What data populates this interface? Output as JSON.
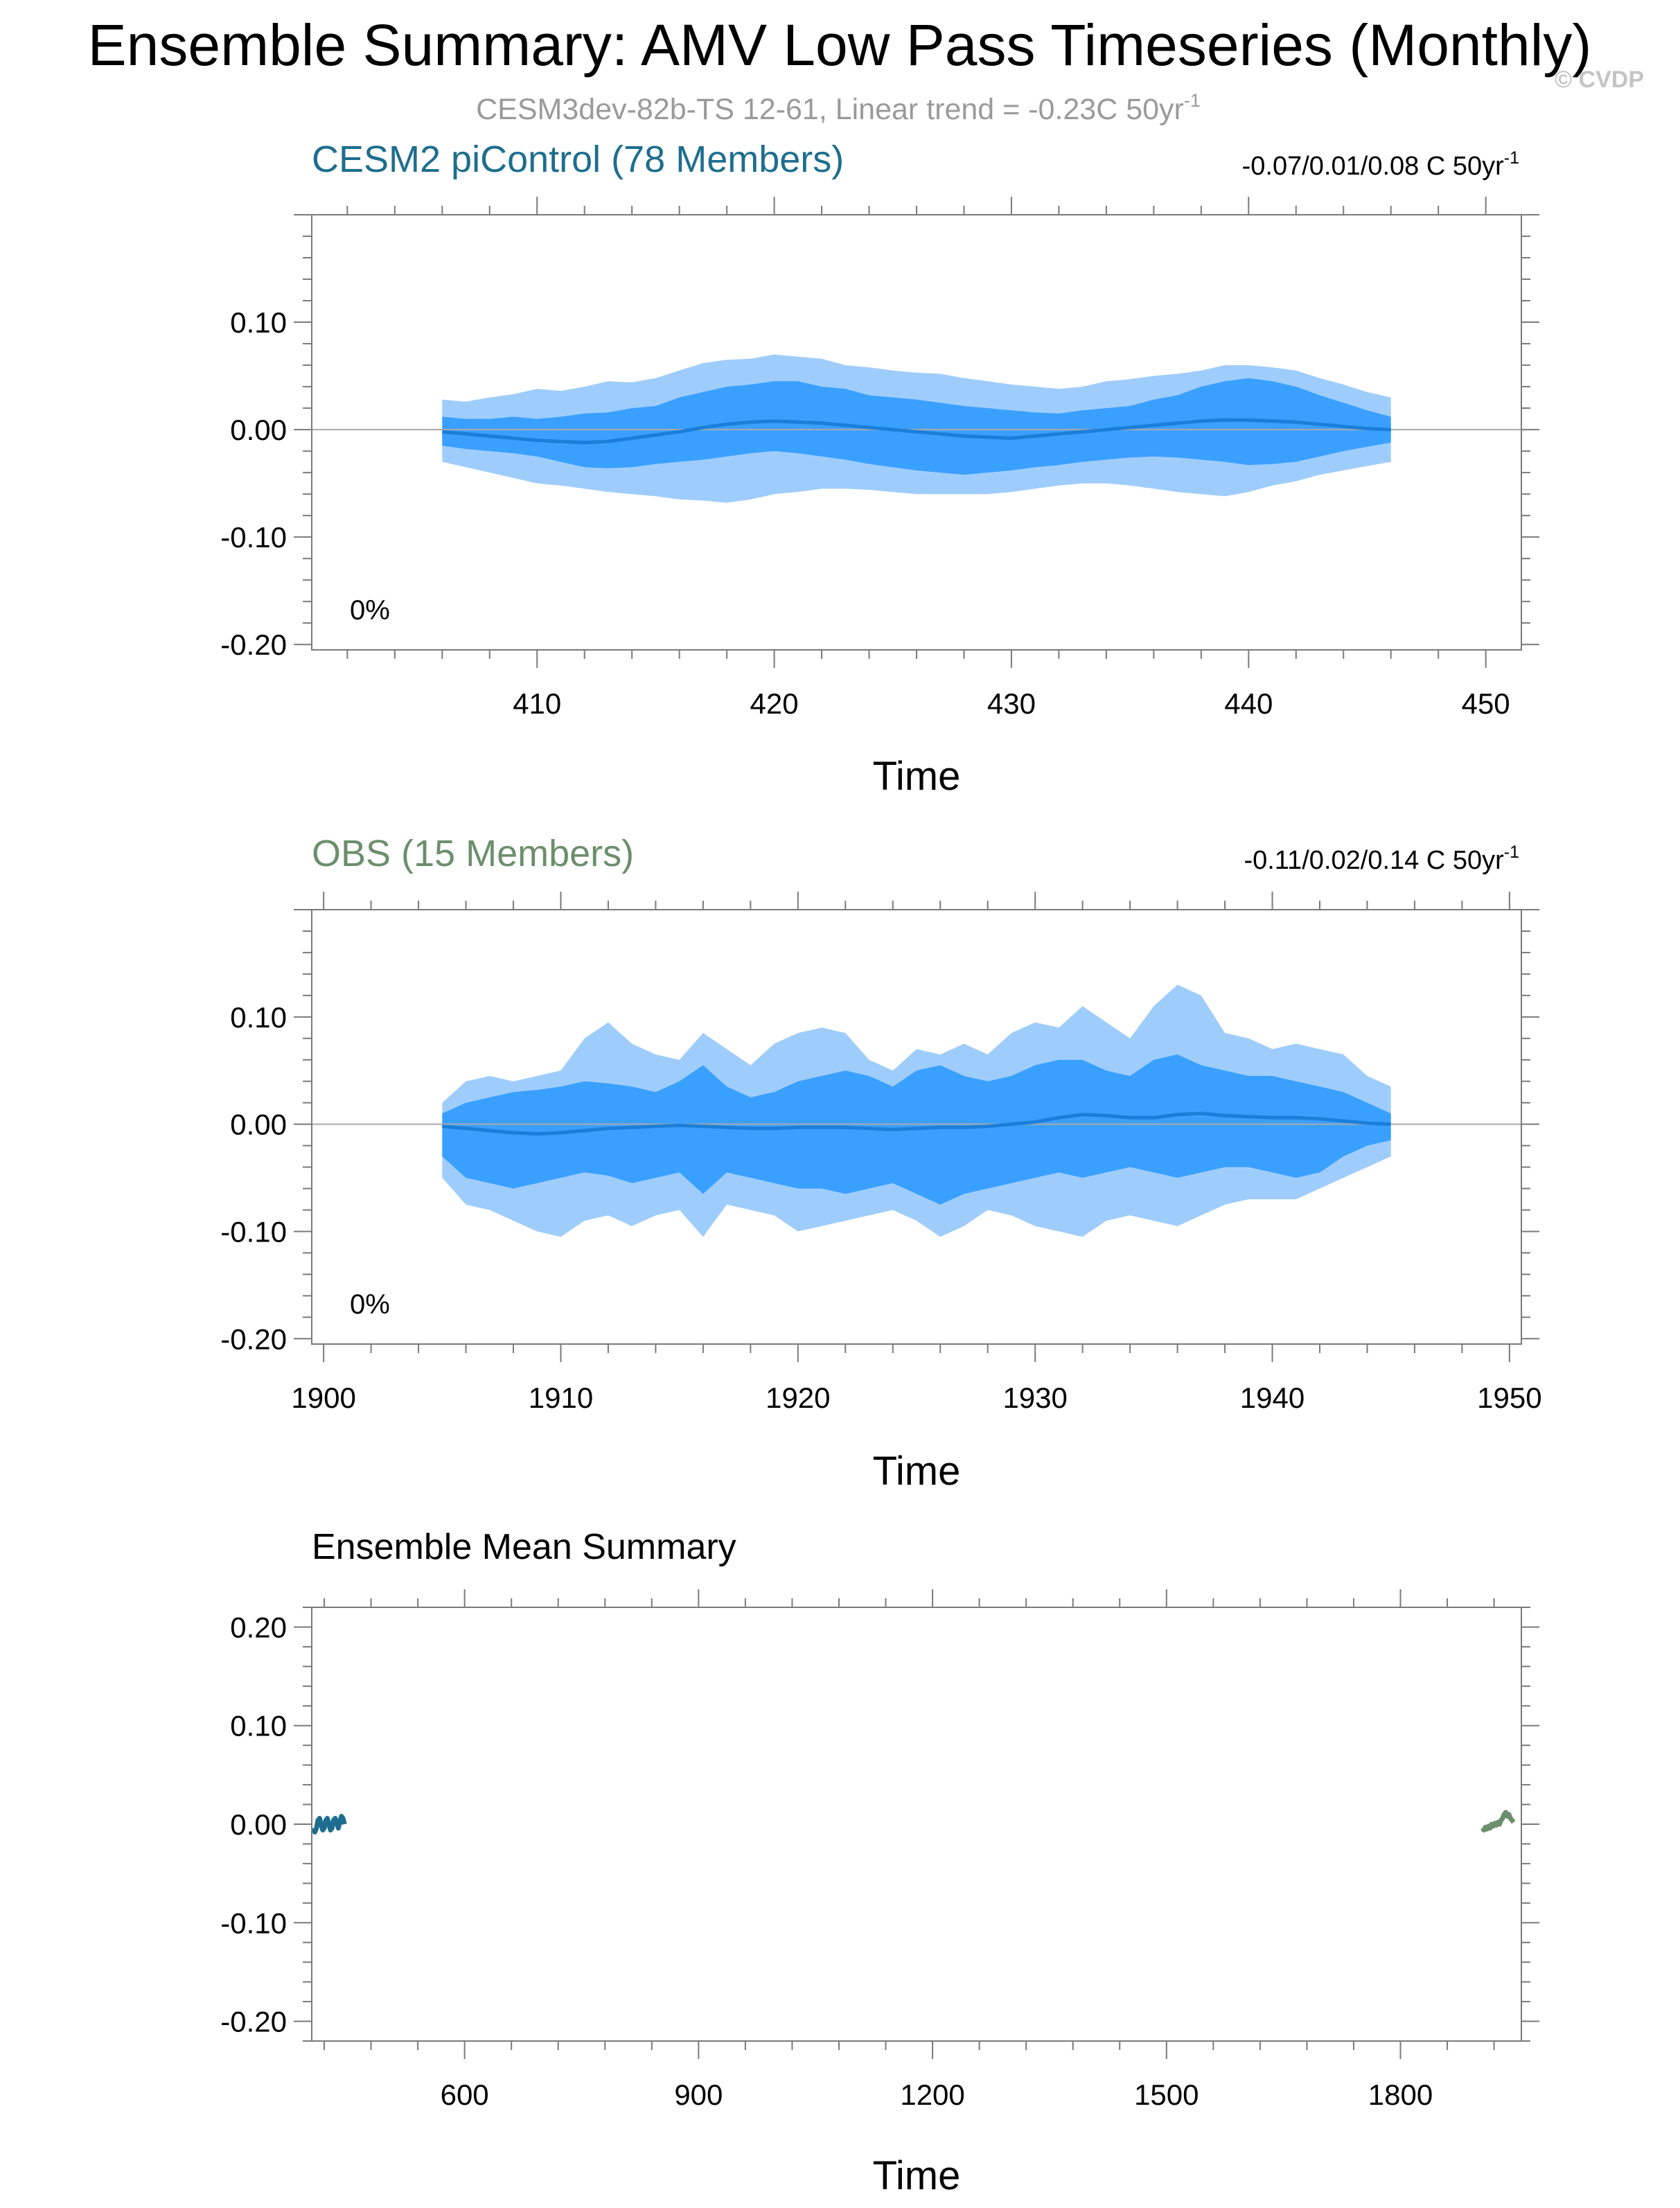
{
  "page": {
    "title": "Ensemble Summary: AMV Low Pass Timeseries (Monthly)",
    "subtitle_main": "CESM3dev-82b-TS 12-61, Linear trend = -0.23C 50yr",
    "subtitle_sup": "-1",
    "watermark": "© CVDP"
  },
  "colors": {
    "band_outer": "#9fcdfb",
    "band_inner": "#3aa0ff",
    "mean_line": "#1a7fd9",
    "axis": "#7a7a7a",
    "zero_line": "#a9a9a9",
    "model_title": "#1d6e8e",
    "obs_title": "#6b8f6b",
    "model_series": "#1d6e8e",
    "obs_series": "#6b8f6b",
    "subtitle": "#9a9a9a",
    "watermark": "#c4c4c4"
  },
  "chart_data": [
    {
      "type": "area",
      "title": "CESM2 piControl (78 Members)",
      "trend_label": "-0.07/0.01/0.08 C 50yr",
      "trend_sup": "-1",
      "xlabel": "Time",
      "ylabel": "",
      "xlim": [
        400.5,
        451.5
      ],
      "ylim": [
        -0.205,
        0.2
      ],
      "x_ticks": [
        410,
        420,
        430,
        440,
        450
      ],
      "x_tick_labels": [
        "410",
        "420",
        "430",
        "440",
        "450"
      ],
      "y_ticks": [
        0.1,
        0.0,
        -0.1,
        -0.2
      ],
      "y_tick_labels": [
        "0.10",
        "0.00",
        "-0.10",
        "-0.20"
      ],
      "annotation": "0%",
      "grid": false,
      "x": [
        406,
        407,
        408,
        409,
        410,
        411,
        412,
        413,
        414,
        415,
        416,
        417,
        418,
        419,
        420,
        421,
        422,
        423,
        424,
        425,
        426,
        427,
        428,
        429,
        430,
        431,
        432,
        433,
        434,
        435,
        436,
        437,
        438,
        439,
        440,
        441,
        442,
        443,
        444,
        445,
        446
      ],
      "series": [
        {
          "name": "outer upper",
          "values": [
            0.028,
            0.026,
            0.03,
            0.033,
            0.038,
            0.036,
            0.04,
            0.045,
            0.044,
            0.048,
            0.055,
            0.062,
            0.065,
            0.066,
            0.07,
            0.068,
            0.066,
            0.06,
            0.058,
            0.055,
            0.053,
            0.052,
            0.048,
            0.045,
            0.042,
            0.04,
            0.038,
            0.04,
            0.045,
            0.047,
            0.05,
            0.052,
            0.055,
            0.06,
            0.06,
            0.058,
            0.055,
            0.048,
            0.042,
            0.035,
            0.03
          ]
        },
        {
          "name": "inner upper",
          "values": [
            0.012,
            0.01,
            0.01,
            0.012,
            0.01,
            0.012,
            0.015,
            0.016,
            0.02,
            0.022,
            0.03,
            0.035,
            0.04,
            0.042,
            0.045,
            0.045,
            0.04,
            0.038,
            0.032,
            0.03,
            0.028,
            0.025,
            0.022,
            0.02,
            0.018,
            0.016,
            0.015,
            0.018,
            0.02,
            0.022,
            0.028,
            0.032,
            0.04,
            0.045,
            0.048,
            0.045,
            0.04,
            0.032,
            0.025,
            0.018,
            0.012
          ]
        },
        {
          "name": "mean",
          "values": [
            -0.002,
            -0.004,
            -0.006,
            -0.008,
            -0.01,
            -0.011,
            -0.012,
            -0.011,
            -0.008,
            -0.005,
            -0.002,
            0.002,
            0.005,
            0.007,
            0.008,
            0.007,
            0.006,
            0.004,
            0.002,
            0.0,
            -0.002,
            -0.004,
            -0.006,
            -0.007,
            -0.008,
            -0.006,
            -0.004,
            -0.002,
            0.0,
            0.002,
            0.004,
            0.006,
            0.008,
            0.009,
            0.009,
            0.008,
            0.007,
            0.005,
            0.003,
            0.001,
            0.0
          ]
        },
        {
          "name": "inner lower",
          "values": [
            -0.015,
            -0.018,
            -0.02,
            -0.022,
            -0.025,
            -0.03,
            -0.035,
            -0.036,
            -0.035,
            -0.032,
            -0.03,
            -0.028,
            -0.025,
            -0.022,
            -0.02,
            -0.022,
            -0.025,
            -0.028,
            -0.032,
            -0.035,
            -0.038,
            -0.04,
            -0.042,
            -0.04,
            -0.038,
            -0.035,
            -0.033,
            -0.03,
            -0.028,
            -0.026,
            -0.025,
            -0.026,
            -0.028,
            -0.03,
            -0.033,
            -0.032,
            -0.03,
            -0.025,
            -0.02,
            -0.016,
            -0.012
          ]
        },
        {
          "name": "outer lower",
          "values": [
            -0.03,
            -0.035,
            -0.04,
            -0.045,
            -0.05,
            -0.052,
            -0.055,
            -0.058,
            -0.06,
            -0.062,
            -0.065,
            -0.066,
            -0.068,
            -0.065,
            -0.06,
            -0.058,
            -0.055,
            -0.055,
            -0.056,
            -0.058,
            -0.06,
            -0.06,
            -0.06,
            -0.06,
            -0.058,
            -0.055,
            -0.052,
            -0.05,
            -0.05,
            -0.052,
            -0.055,
            -0.058,
            -0.06,
            -0.062,
            -0.058,
            -0.052,
            -0.048,
            -0.042,
            -0.038,
            -0.034,
            -0.03
          ]
        }
      ]
    },
    {
      "type": "area",
      "title": "OBS (15 Members)",
      "trend_label": "-0.11/0.02/0.14 C 50yr",
      "trend_sup": "-1",
      "xlabel": "Time",
      "ylabel": "",
      "xlim": [
        1899.5,
        1950.5
      ],
      "ylim": [
        -0.205,
        0.2
      ],
      "x_ticks": [
        1900,
        1910,
        1920,
        1930,
        1940,
        1950
      ],
      "x_tick_labels": [
        "1900",
        "1910",
        "1920",
        "1930",
        "1940",
        "1950"
      ],
      "y_ticks": [
        0.1,
        0.0,
        -0.1,
        -0.2
      ],
      "y_tick_labels": [
        "0.10",
        "0.00",
        "-0.10",
        "-0.20"
      ],
      "annotation": "0%",
      "grid": false,
      "x": [
        1905,
        1906,
        1907,
        1908,
        1909,
        1910,
        1911,
        1912,
        1913,
        1914,
        1915,
        1916,
        1917,
        1918,
        1919,
        1920,
        1921,
        1922,
        1923,
        1924,
        1925,
        1926,
        1927,
        1928,
        1929,
        1930,
        1931,
        1932,
        1933,
        1934,
        1935,
        1936,
        1937,
        1938,
        1939,
        1940,
        1941,
        1942,
        1943,
        1944,
        1945
      ],
      "series": [
        {
          "name": "outer upper",
          "values": [
            0.02,
            0.04,
            0.045,
            0.04,
            0.045,
            0.05,
            0.08,
            0.095,
            0.075,
            0.065,
            0.06,
            0.085,
            0.07,
            0.055,
            0.075,
            0.085,
            0.09,
            0.085,
            0.06,
            0.05,
            0.07,
            0.065,
            0.075,
            0.065,
            0.085,
            0.095,
            0.09,
            0.11,
            0.095,
            0.08,
            0.11,
            0.13,
            0.12,
            0.085,
            0.08,
            0.07,
            0.075,
            0.07,
            0.065,
            0.045,
            0.035
          ]
        },
        {
          "name": "inner upper",
          "values": [
            0.01,
            0.02,
            0.025,
            0.03,
            0.032,
            0.035,
            0.04,
            0.038,
            0.035,
            0.03,
            0.04,
            0.055,
            0.035,
            0.025,
            0.03,
            0.04,
            0.045,
            0.05,
            0.045,
            0.035,
            0.05,
            0.055,
            0.045,
            0.04,
            0.045,
            0.055,
            0.06,
            0.06,
            0.05,
            0.045,
            0.06,
            0.065,
            0.055,
            0.05,
            0.045,
            0.045,
            0.04,
            0.035,
            0.03,
            0.02,
            0.01
          ]
        },
        {
          "name": "mean",
          "values": [
            -0.002,
            -0.004,
            -0.006,
            -0.008,
            -0.009,
            -0.008,
            -0.006,
            -0.004,
            -0.003,
            -0.002,
            -0.001,
            -0.002,
            -0.003,
            -0.004,
            -0.004,
            -0.003,
            -0.003,
            -0.003,
            -0.004,
            -0.005,
            -0.004,
            -0.003,
            -0.003,
            -0.002,
            0.0,
            0.002,
            0.006,
            0.009,
            0.008,
            0.006,
            0.006,
            0.009,
            0.01,
            0.008,
            0.007,
            0.006,
            0.006,
            0.005,
            0.003,
            0.001,
            0.0
          ]
        },
        {
          "name": "inner lower",
          "values": [
            -0.03,
            -0.05,
            -0.055,
            -0.06,
            -0.055,
            -0.05,
            -0.045,
            -0.048,
            -0.055,
            -0.05,
            -0.045,
            -0.065,
            -0.045,
            -0.05,
            -0.055,
            -0.06,
            -0.06,
            -0.065,
            -0.06,
            -0.055,
            -0.065,
            -0.075,
            -0.065,
            -0.06,
            -0.055,
            -0.05,
            -0.045,
            -0.05,
            -0.045,
            -0.04,
            -0.045,
            -0.05,
            -0.045,
            -0.04,
            -0.04,
            -0.045,
            -0.05,
            -0.045,
            -0.03,
            -0.02,
            -0.015
          ]
        },
        {
          "name": "outer lower",
          "values": [
            -0.05,
            -0.075,
            -0.08,
            -0.09,
            -0.1,
            -0.105,
            -0.09,
            -0.085,
            -0.095,
            -0.085,
            -0.08,
            -0.105,
            -0.075,
            -0.08,
            -0.085,
            -0.1,
            -0.095,
            -0.09,
            -0.085,
            -0.08,
            -0.09,
            -0.105,
            -0.095,
            -0.08,
            -0.085,
            -0.095,
            -0.1,
            -0.105,
            -0.09,
            -0.085,
            -0.09,
            -0.095,
            -0.085,
            -0.075,
            -0.07,
            -0.07,
            -0.07,
            -0.06,
            -0.05,
            -0.04,
            -0.03
          ]
        }
      ]
    },
    {
      "type": "line",
      "title": "Ensemble Mean Summary",
      "xlabel": "Time",
      "ylabel": "",
      "xlim": [
        404,
        1955
      ],
      "ylim": [
        -0.22,
        0.22
      ],
      "x_ticks": [
        600,
        900,
        1200,
        1500,
        1800
      ],
      "x_tick_labels": [
        "600",
        "900",
        "1200",
        "1500",
        "1800"
      ],
      "y_ticks": [
        0.2,
        0.1,
        0.0,
        -0.1,
        -0.2
      ],
      "y_tick_labels": [
        "0.20",
        "0.10",
        "0.00",
        "-0.10",
        "-0.20"
      ],
      "grid": false,
      "series": [
        {
          "x": [
            406,
            408,
            410,
            412,
            414,
            416,
            418,
            420,
            422,
            424,
            426,
            428,
            430,
            432,
            434,
            436,
            438,
            440,
            442,
            444,
            446
          ],
          "values": [
            -0.004,
            -0.008,
            -0.004,
            0.004,
            0.006,
            0.0,
            -0.006,
            -0.004,
            0.004,
            0.006,
            0.0,
            -0.006,
            -0.004,
            0.004,
            0.006,
            0.002,
            -0.004,
            0.002,
            0.008,
            0.006,
            0.0
          ]
        },
        {
          "x": [
            1905,
            1907,
            1909,
            1911,
            1913,
            1915,
            1917,
            1919,
            1921,
            1923,
            1925,
            1927,
            1929,
            1931,
            1933,
            1935,
            1937,
            1939,
            1941,
            1943,
            1945
          ],
          "values": [
            -0.004,
            -0.006,
            -0.003,
            -0.005,
            -0.002,
            -0.004,
            0.0,
            -0.002,
            0.001,
            -0.001,
            0.002,
            0.0,
            0.004,
            0.006,
            0.01,
            0.012,
            0.008,
            0.01,
            0.006,
            0.004,
            0.002
          ]
        }
      ]
    }
  ]
}
